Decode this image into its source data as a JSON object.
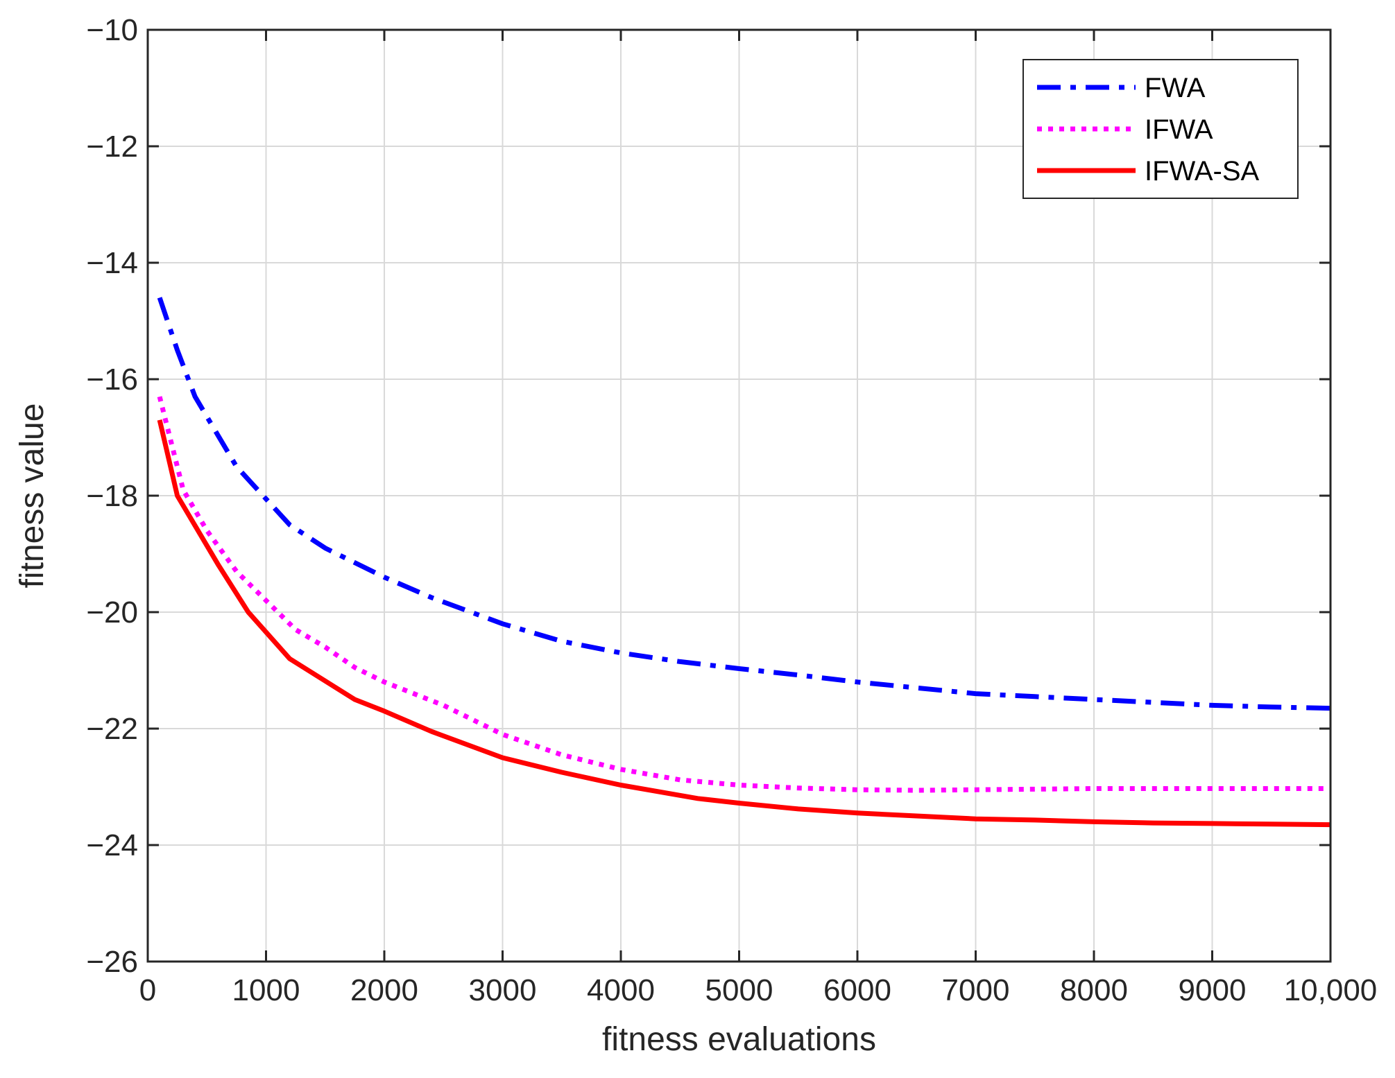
{
  "chart_data": {
    "type": "line",
    "xlabel": "fitness evaluations",
    "ylabel": "fitness value",
    "xlim": [
      0,
      10000
    ],
    "ylim": [
      -26,
      -10
    ],
    "xticks": [
      0,
      1000,
      2000,
      3000,
      4000,
      5000,
      6000,
      7000,
      8000,
      9000,
      10000
    ],
    "xtick_labels": [
      "0",
      "1000",
      "2000",
      "3000",
      "4000",
      "5000",
      "6000",
      "7000",
      "8000",
      "9000",
      "10,000"
    ],
    "yticks": [
      -26,
      -24,
      -22,
      -20,
      -18,
      -16,
      -14,
      -12,
      -10
    ],
    "ytick_labels": [
      "−26",
      "−24",
      "−22",
      "−20",
      "−18",
      "−16",
      "−14",
      "−12",
      "−10"
    ],
    "grid": true,
    "legend_position": "top-right",
    "series": [
      {
        "name": "FWA",
        "color": "#0000ff",
        "style": "dashdot",
        "x": [
          100,
          250,
          400,
          750,
          1200,
          1500,
          2000,
          2400,
          3000,
          3500,
          4000,
          4500,
          5000,
          5500,
          6000,
          6500,
          7000,
          7500,
          8000,
          8500,
          9000,
          9500,
          10000
        ],
        "y": [
          -14.6,
          -15.5,
          -16.3,
          -17.5,
          -18.5,
          -18.9,
          -19.4,
          -19.75,
          -20.2,
          -20.5,
          -20.7,
          -20.85,
          -20.97,
          -21.08,
          -21.2,
          -21.3,
          -21.4,
          -21.45,
          -21.5,
          -21.55,
          -21.6,
          -21.63,
          -21.65
        ]
      },
      {
        "name": "IFWA",
        "color": "#ff00ff",
        "style": "dotted",
        "x": [
          100,
          200,
          300,
          500,
          750,
          1000,
          1250,
          1500,
          1750,
          2000,
          2500,
          3000,
          3500,
          4000,
          4500,
          5000,
          5500,
          6000,
          6500,
          7000,
          8000,
          9000,
          10000
        ],
        "y": [
          -16.3,
          -17.1,
          -17.9,
          -18.6,
          -19.3,
          -19.8,
          -20.3,
          -20.6,
          -20.95,
          -21.2,
          -21.6,
          -22.1,
          -22.45,
          -22.7,
          -22.88,
          -22.97,
          -23.02,
          -23.05,
          -23.06,
          -23.05,
          -23.03,
          -23.03,
          -23.03
        ]
      },
      {
        "name": "IFWA-SA",
        "color": "#ff0000",
        "style": "solid",
        "x": [
          100,
          250,
          600,
          850,
          1200,
          1750,
          2000,
          2400,
          3000,
          3500,
          4000,
          4650,
          5000,
          5500,
          6000,
          6500,
          7000,
          7500,
          8000,
          8500,
          9000,
          9500,
          10000
        ],
        "y": [
          -16.7,
          -18.0,
          -19.2,
          -20.0,
          -20.8,
          -21.5,
          -21.7,
          -22.05,
          -22.5,
          -22.75,
          -22.97,
          -23.2,
          -23.28,
          -23.38,
          -23.45,
          -23.5,
          -23.55,
          -23.57,
          -23.6,
          -23.62,
          -23.63,
          -23.64,
          -23.65
        ]
      }
    ]
  }
}
